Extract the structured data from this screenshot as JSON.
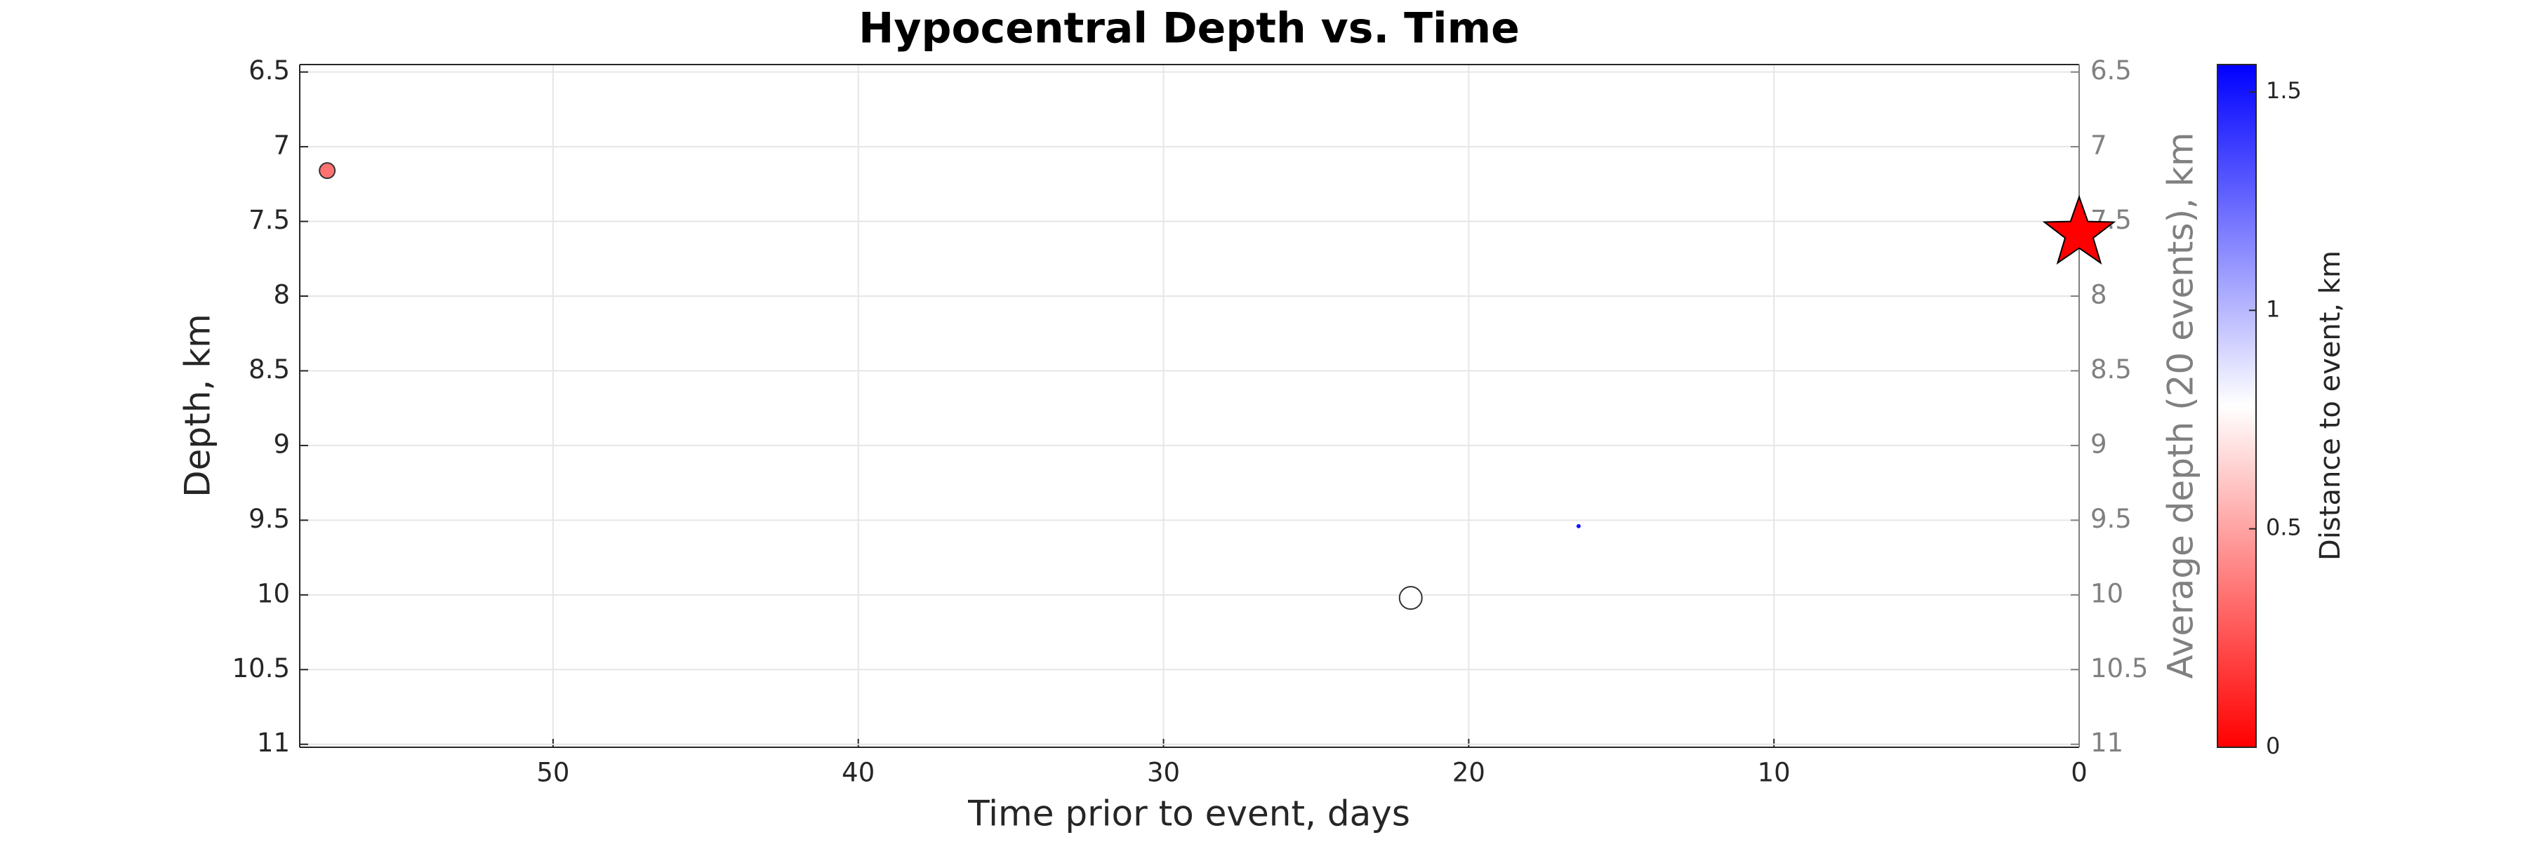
{
  "chart_data": {
    "type": "scatter",
    "title": "Hypocentral Depth vs. Time",
    "xlabel": "Time prior to event, days",
    "ylabel": "Depth, km",
    "y2label": "Average depth (20 events), km",
    "colorbar_label": "Distance to event, km",
    "x": [
      57.4,
      21.9,
      16.4
    ],
    "values": [
      7.16,
      10.02,
      9.54
    ],
    "distances": [
      0.35,
      0.78,
      1.5
    ],
    "sizes": [
      11,
      16,
      3
    ],
    "event": {
      "x": 0,
      "y": 7.58,
      "color": "#ff0000"
    },
    "xlim": [
      0,
      58.3
    ],
    "x_reversed": true,
    "xticks": [
      0,
      10,
      20,
      30,
      40,
      50
    ],
    "ylim": [
      6.45,
      11.02
    ],
    "y_reversed": true,
    "yticks": [
      6.5,
      7,
      7.5,
      8,
      8.5,
      9,
      9.5,
      10,
      10.5,
      11
    ],
    "clim": [
      0,
      1.5625
    ],
    "cticks": [
      0,
      0.5,
      1,
      1.5
    ],
    "colormap": [
      "#ff0000",
      "#ffffff",
      "#0000ff"
    ],
    "grid": true
  }
}
